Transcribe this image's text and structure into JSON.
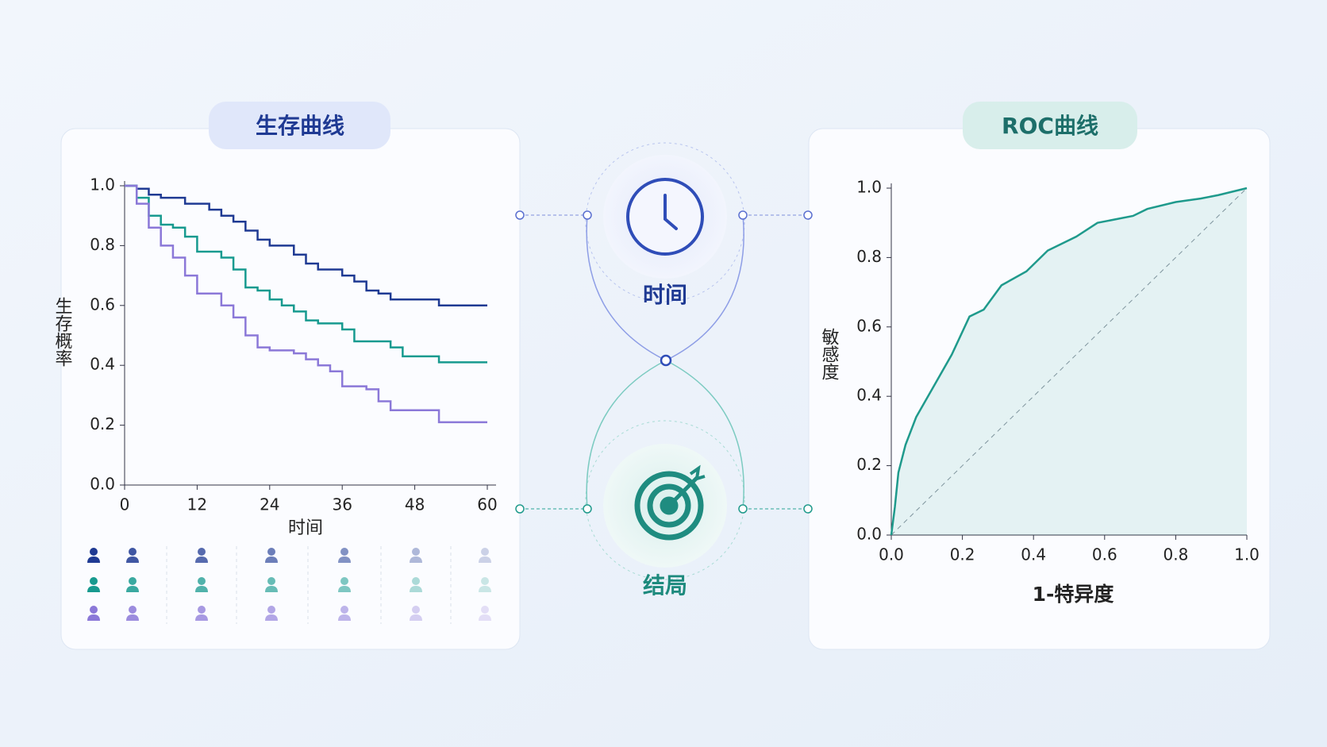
{
  "chart_data": [
    {
      "type": "line",
      "title": "生存曲线",
      "xlabel": "时间",
      "ylabel": "生存概率",
      "step": true,
      "x": [
        0,
        2,
        4,
        6,
        8,
        10,
        12,
        14,
        16,
        18,
        20,
        22,
        24,
        26,
        28,
        30,
        32,
        34,
        36,
        38,
        40,
        42,
        44,
        46,
        48,
        50,
        52,
        54,
        56,
        58,
        60
      ],
      "series": [
        {
          "color": "#1f3a93",
          "values": [
            1.0,
            0.99,
            0.97,
            0.96,
            0.96,
            0.94,
            0.94,
            0.92,
            0.9,
            0.88,
            0.85,
            0.82,
            0.8,
            0.8,
            0.77,
            0.74,
            0.72,
            0.72,
            0.7,
            0.68,
            0.65,
            0.64,
            0.62,
            0.62,
            0.62,
            0.62,
            0.6,
            0.6,
            0.6,
            0.6,
            0.6
          ]
        },
        {
          "color": "#179a8f",
          "values": [
            1.0,
            0.96,
            0.9,
            0.87,
            0.86,
            0.83,
            0.78,
            0.78,
            0.76,
            0.72,
            0.66,
            0.65,
            0.62,
            0.6,
            0.58,
            0.55,
            0.54,
            0.54,
            0.52,
            0.48,
            0.48,
            0.48,
            0.46,
            0.43,
            0.43,
            0.43,
            0.41,
            0.41,
            0.41,
            0.41,
            0.41
          ]
        },
        {
          "color": "#8b78d8",
          "values": [
            1.0,
            0.94,
            0.86,
            0.8,
            0.76,
            0.7,
            0.64,
            0.64,
            0.6,
            0.56,
            0.5,
            0.46,
            0.45,
            0.45,
            0.44,
            0.42,
            0.4,
            0.38,
            0.33,
            0.33,
            0.32,
            0.28,
            0.25,
            0.25,
            0.25,
            0.25,
            0.21,
            0.21,
            0.21,
            0.21,
            0.21
          ]
        }
      ],
      "xlim": [
        0,
        60
      ],
      "xticks": [
        0,
        12,
        24,
        36,
        48,
        60
      ],
      "ylim": [
        0,
        1
      ],
      "yticks": [
        {
          "value": 0,
          "label": "0.0"
        },
        {
          "value": 0.2,
          "label": "0.2"
        },
        {
          "value": 0.4,
          "label": "0.4"
        },
        {
          "value": 0.6,
          "label": "0.6"
        },
        {
          "value": 0.8,
          "label": "0.8"
        },
        {
          "value": 1,
          "label": "1.0"
        }
      ]
    },
    {
      "type": "line",
      "title": "ROC曲线",
      "xlabel": "1-特异度",
      "ylabel": "敏感度",
      "fill_under": true,
      "diagonal": true,
      "x": [
        0,
        0.01,
        0.02,
        0.04,
        0.07,
        0.12,
        0.17,
        0.22,
        0.26,
        0.31,
        0.38,
        0.44,
        0.52,
        0.58,
        0.68,
        0.72,
        0.8,
        0.87,
        0.92,
        1.0
      ],
      "series": [
        {
          "color": "#1f9a8c",
          "values": [
            0,
            0.08,
            0.18,
            0.26,
            0.34,
            0.43,
            0.52,
            0.63,
            0.65,
            0.72,
            0.76,
            0.82,
            0.86,
            0.9,
            0.92,
            0.94,
            0.96,
            0.97,
            0.98,
            1.0
          ]
        }
      ],
      "xlim": [
        0,
        1
      ],
      "xticks": [
        {
          "value": 0,
          "label": "0.0"
        },
        {
          "value": 0.2,
          "label": "0.2"
        },
        {
          "value": 0.4,
          "label": "0.4"
        },
        {
          "value": 0.6,
          "label": "0.6"
        },
        {
          "value": 0.8,
          "label": "0.8"
        },
        {
          "value": 1,
          "label": "1.0"
        }
      ],
      "ylim": [
        0,
        1
      ],
      "yticks": [
        {
          "value": 0,
          "label": "0.0"
        },
        {
          "value": 0.2,
          "label": "0.2"
        },
        {
          "value": 0.4,
          "label": "0.4"
        },
        {
          "value": 0.6,
          "label": "0.6"
        },
        {
          "value": 0.8,
          "label": "0.8"
        },
        {
          "value": 1,
          "label": "1.0"
        }
      ]
    }
  ],
  "center": {
    "time_label": "时间",
    "outcome_label": "结局"
  }
}
